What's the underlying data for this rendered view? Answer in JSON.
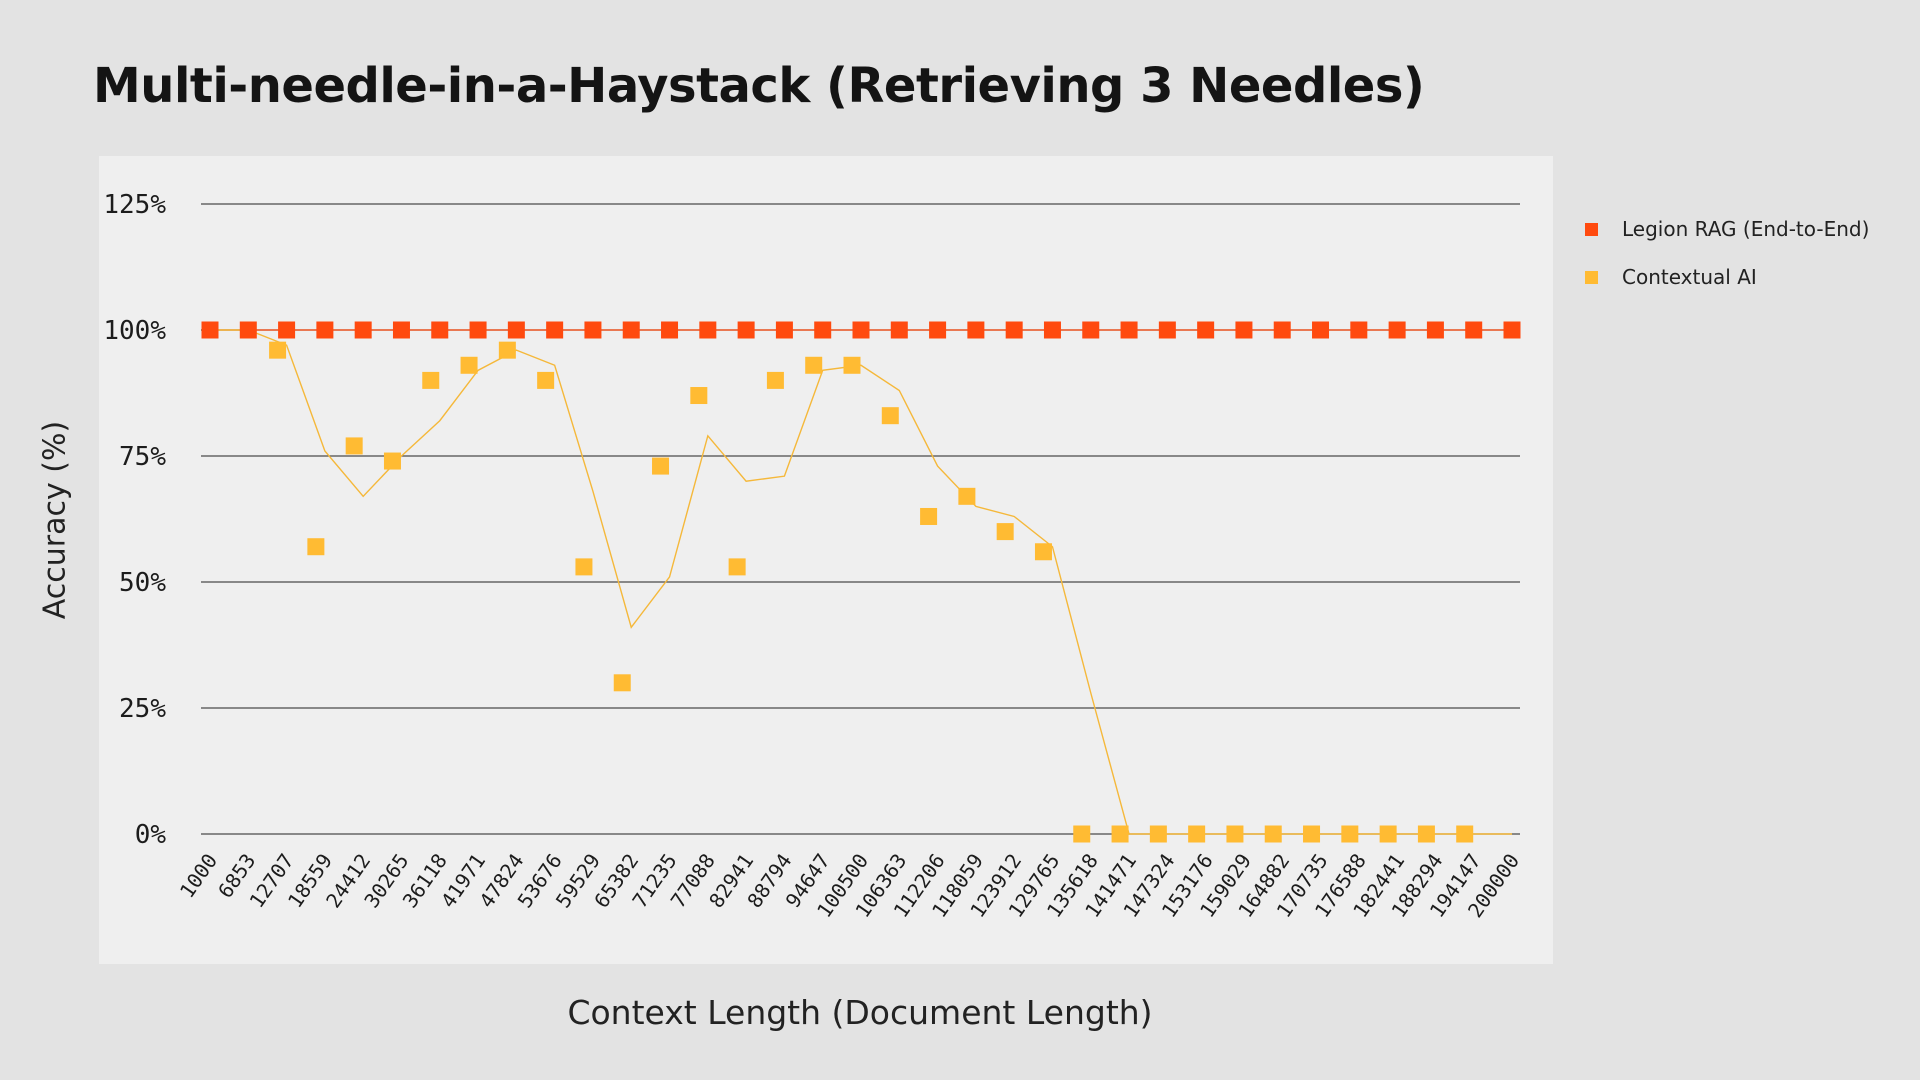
{
  "colors": {
    "legion": "#ff4a0f",
    "contextual": "#ffbb33",
    "contextual_line": "#f5b83a",
    "grid": "#4a4a4a"
  },
  "chart_data": {
    "type": "scatter",
    "title": "Multi-needle-in-a-Haystack (Retrieving 3 Needles)",
    "xlabel": "Context Length (Document Length)",
    "ylabel": "Accuracy (%)",
    "ylim": [
      0,
      125
    ],
    "yticks": [
      "0%",
      "25%",
      "50%",
      "75%",
      "100%",
      "125%"
    ],
    "ytick_values": [
      0,
      25,
      50,
      75,
      100,
      125
    ],
    "grid": "horizontal",
    "legend_position": "right",
    "x": [
      1000,
      6853,
      12707,
      18559,
      24412,
      30265,
      36118,
      41971,
      47824,
      53676,
      59529,
      65382,
      71235,
      77088,
      82941,
      88794,
      94647,
      100500,
      106363,
      112206,
      118059,
      123912,
      129765,
      135618,
      141471,
      147324,
      153176,
      159029,
      164882,
      170735,
      176588,
      182441,
      188294,
      194147,
      200000
    ],
    "series": [
      {
        "name": "Legion RAG (End-to-End)",
        "values": [
          100,
          100,
          100,
          100,
          100,
          100,
          100,
          100,
          100,
          100,
          100,
          100,
          100,
          100,
          100,
          100,
          100,
          100,
          100,
          100,
          100,
          100,
          100,
          100,
          100,
          100,
          100,
          100,
          100,
          100,
          100,
          100,
          100,
          100,
          100
        ]
      },
      {
        "name": "Contextual AI",
        "values": [
          null,
          null,
          96,
          57,
          77,
          74,
          90,
          93,
          96,
          90,
          53,
          30,
          73,
          87,
          53,
          90,
          93,
          93,
          83,
          63,
          67,
          60,
          56,
          0,
          0,
          0,
          0,
          0,
          0,
          0,
          0,
          0,
          0,
          0,
          null
        ],
        "trend": [
          100,
          100,
          97,
          76,
          67,
          75,
          82,
          92,
          96,
          93,
          68,
          41,
          51,
          79,
          70,
          71,
          92,
          93,
          88,
          73,
          65,
          63,
          57,
          28,
          0,
          0,
          0,
          0,
          0,
          0,
          0,
          0,
          0,
          0,
          0
        ]
      }
    ]
  }
}
